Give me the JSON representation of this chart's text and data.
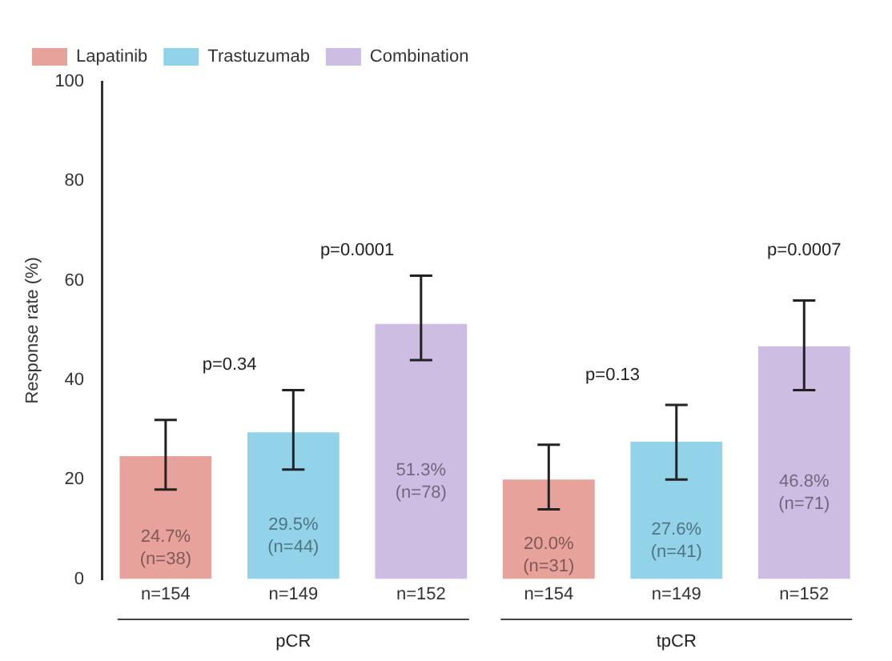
{
  "chart_data": {
    "type": "bar",
    "ylabel": "Response rate (%)",
    "categories": [
      "n=154",
      "n=149",
      "n=152",
      "n=154",
      "n=149",
      "n=152"
    ],
    "series": [
      {
        "name": "Lapatinib",
        "color": "#e8a29c",
        "values": [
          24.7,
          null,
          null,
          20.0,
          null,
          null
        ],
        "errors": [
          [
            18,
            32
          ],
          null,
          null,
          [
            14,
            27
          ],
          null,
          null
        ],
        "value_labels": [
          "24.7% (n=38)",
          null,
          null,
          "20.0% (n=31)",
          null,
          null
        ]
      },
      {
        "name": "Trastuzumab",
        "color": "#93d3ea",
        "values": [
          null,
          29.5,
          null,
          null,
          27.6,
          null
        ],
        "errors": [
          null,
          [
            22,
            38
          ],
          null,
          null,
          [
            20,
            35
          ],
          null
        ],
        "value_labels": [
          null,
          "29.5% (n=44)",
          null,
          null,
          "27.6% (n=41)",
          null
        ]
      },
      {
        "name": "Combination",
        "color": "#cdbde3",
        "values": [
          null,
          null,
          51.3,
          null,
          null,
          46.8
        ],
        "errors": [
          null,
          null,
          [
            44,
            61
          ],
          null,
          null,
          [
            38,
            56
          ]
        ],
        "value_labels": [
          null,
          null,
          "51.3% (n=78)",
          null,
          null,
          "46.8% (n=71)"
        ]
      }
    ],
    "ylim": [
      0,
      100
    ],
    "yticks": [
      0,
      20,
      40,
      60,
      80,
      100
    ],
    "grid": false,
    "legend": "top left",
    "annotations": [
      "p=0.34",
      "p=0.0001",
      "p=0.13",
      "p=0.0007",
      "pCR",
      "tpCR"
    ]
  }
}
